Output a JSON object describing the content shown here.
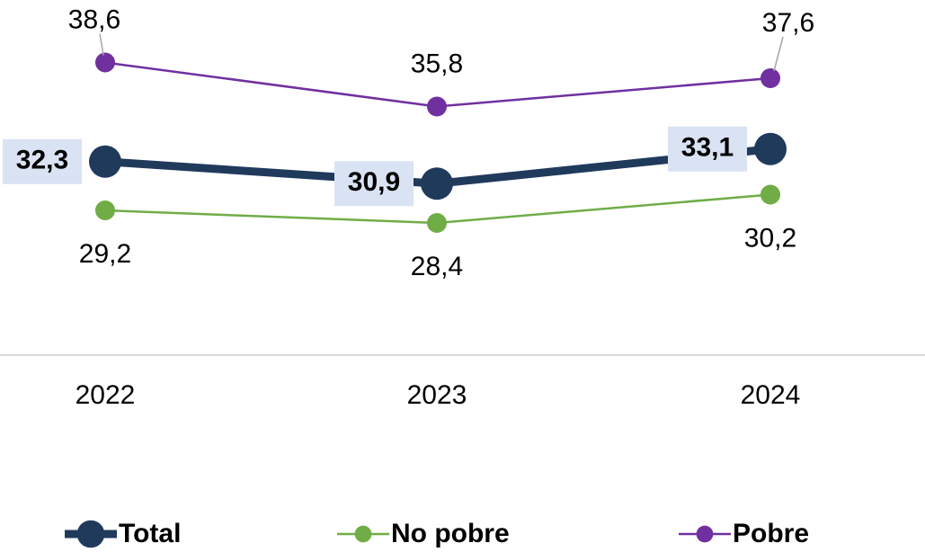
{
  "chart_data": {
    "type": "line",
    "categories": [
      "2022",
      "2023",
      "2024"
    ],
    "series": [
      {
        "name": "Total",
        "color": "#203a5c",
        "values": [
          32.3,
          30.9,
          33.1
        ],
        "value_labels": [
          "32,3",
          "30,9",
          "33,1"
        ]
      },
      {
        "name": "No pobre",
        "color": "#70ad47",
        "values": [
          29.2,
          28.4,
          30.2
        ],
        "value_labels": [
          "29,2",
          "28,4",
          "30,2"
        ]
      },
      {
        "name": "Pobre",
        "color": "#7030a0",
        "values": [
          38.6,
          35.8,
          37.6
        ],
        "value_labels": [
          "38,6",
          "35,8",
          "37,6"
        ]
      }
    ],
    "ylim": [
      20,
      42
    ]
  }
}
